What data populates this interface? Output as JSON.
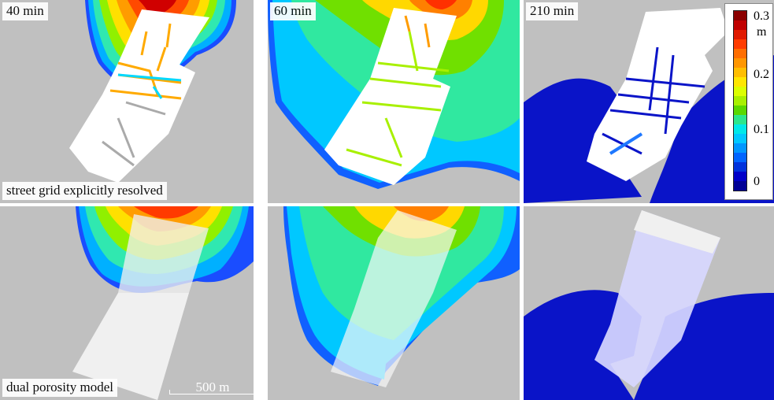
{
  "panels": {
    "p40": {
      "time_label": "40 min"
    },
    "p60": {
      "time_label": "60 min"
    },
    "p210": {
      "time_label": "210 min"
    },
    "row1_caption": "street grid explicitly resolved",
    "row2_caption": "dual porosity model"
  },
  "scale_bar": {
    "label": "500 m"
  },
  "legend": {
    "labels": {
      "v03": "0.3",
      "unit": "m",
      "v02": "0.2",
      "v01": "0.1",
      "v0": "0"
    },
    "colors": [
      "#8b0000",
      "#c00000",
      "#e01a00",
      "#ff3c00",
      "#ff6e00",
      "#ff9600",
      "#ffbe00",
      "#ffe600",
      "#dcff00",
      "#a8f000",
      "#5ad800",
      "#2ce68c",
      "#00e8e8",
      "#00c8ff",
      "#0096ff",
      "#0064ff",
      "#0032dc",
      "#0000c8",
      "#000096"
    ]
  },
  "colors": {
    "background_gray": "#c0c0c0",
    "panel_white": "#ffffff",
    "deep_blue": "#0a14c8"
  }
}
